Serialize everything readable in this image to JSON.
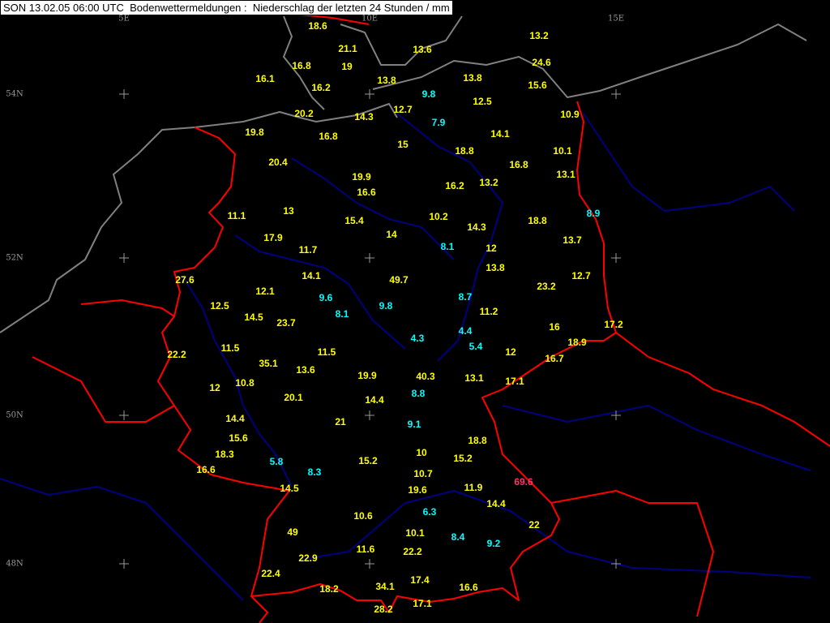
{
  "title": "SON 13.02.05 06:00 UTC  Bodenwettermeldungen :  Niederschlag der letzten 24 Stunden / mm",
  "grid": {
    "longitudes": [
      "5E",
      "10E",
      "15E"
    ],
    "latitudes": [
      "54N",
      "52N",
      "50N",
      "48N"
    ]
  },
  "colors": {
    "background": "#000000",
    "value_normal": "#ffff00",
    "value_below_10": "#00ffff",
    "value_max": "#ff3366",
    "borders": "#ff0000",
    "rivers": "#000080",
    "coast": "#808080",
    "grid": "#999999"
  },
  "precipitation_mm": [
    "18.6",
    "21.1",
    "13.6",
    "13.2",
    "16.8",
    "19",
    "24.6",
    "16.1",
    "13.8",
    "13.8",
    "15.6",
    "16.2",
    "9.8",
    "12.7",
    "12.5",
    "20.2",
    "14.3",
    "7.9",
    "10.9",
    "19.8",
    "16.8",
    "15",
    "14.1",
    "18.8",
    "10.1",
    "16.8",
    "20.4",
    "19.9",
    "13.1",
    "16.2",
    "13.2",
    "16.6",
    "8.9",
    "11.1",
    "13",
    "15.4",
    "10.2",
    "14.3",
    "18.8",
    "14",
    "17.9",
    "13.7",
    "8.1",
    "12",
    "11.7",
    "13.8",
    "27.6",
    "14.1",
    "49.7",
    "12.7",
    "23.2",
    "12.1",
    "9.6",
    "8.7",
    "12.5",
    "9.8",
    "11.2",
    "14.5",
    "8.1",
    "23.7",
    "16",
    "17.2",
    "4.3",
    "4.4",
    "18.9",
    "5.4",
    "22.2",
    "11.5",
    "35.1",
    "11.5",
    "12",
    "16.7",
    "13.6",
    "19.9",
    "40.3",
    "13.1",
    "17.1",
    "12",
    "10.8",
    "8.8",
    "20.1",
    "14.4",
    "14.4",
    "21",
    "9.1",
    "15.6",
    "18.8",
    "18.3",
    "10",
    "15.2",
    "15.2",
    "5.8",
    "8.3",
    "16.6",
    "10.7",
    "14.5",
    "19.6",
    "11.9",
    "69.6",
    "14.4",
    "6.3",
    "10.6",
    "22",
    "49",
    "10.1",
    "8.4",
    "9.2",
    "11.6",
    "22.2",
    "22.9",
    "22.4",
    "17.4",
    "34.1",
    "16.6",
    "18.2",
    "17.1",
    "28.2"
  ]
}
